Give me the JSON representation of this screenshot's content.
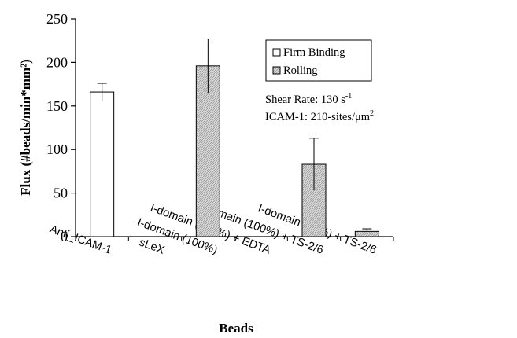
{
  "chart_data": {
    "type": "bar",
    "xlabel": "Beads",
    "ylabel": "Flux (#beads/min*mm²)",
    "ylim": [
      0,
      250
    ],
    "yticks": [
      0,
      50,
      100,
      150,
      200,
      250
    ],
    "grid": false,
    "legend_position": "top-right",
    "categories": [
      "Anti_ICAM-1",
      "sLeX",
      "I-domain (100%)",
      "I-domain (100%) + EDTA",
      "I-domain (100%) + TS-2/6",
      "I-domain (70%) + TS-2/6"
    ],
    "series": [
      {
        "name": "Firm Binding",
        "fill": "#ffffff",
        "values": [
          166,
          0,
          0,
          0,
          0,
          0
        ],
        "errors": [
          10,
          0,
          0,
          0,
          0,
          0
        ]
      },
      {
        "name": "Rolling",
        "fill": "#d3d3d3",
        "values": [
          0,
          0,
          196,
          0,
          83,
          6
        ],
        "errors": [
          0,
          0,
          31,
          0,
          30,
          3
        ]
      }
    ],
    "annotations": {
      "shear_rate": "Shear Rate: 130 s",
      "shear_rate_sup": "-1",
      "icam": "ICAM-1: 210-sites/μm",
      "icam_sup": "2"
    }
  }
}
